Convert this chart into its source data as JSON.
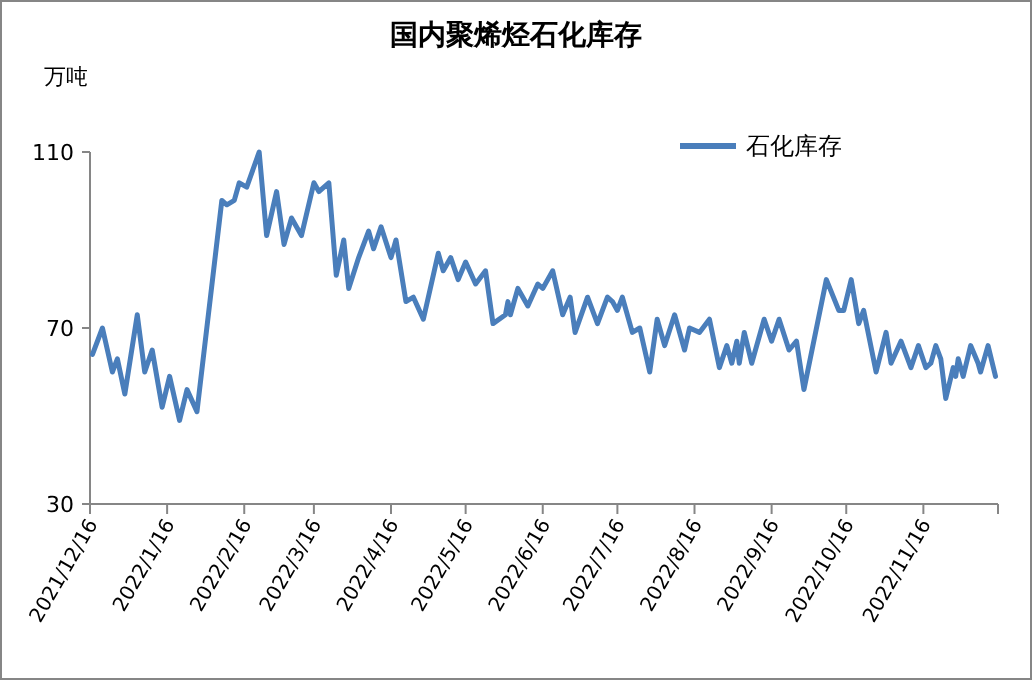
{
  "chart_data": {
    "type": "line",
    "title": "国内聚烯烃石化库存",
    "ylabel": "万吨",
    "xlim": [
      "2021-12-16",
      "2022-12-16"
    ],
    "xticks": [
      {
        "value": "2021-12-16",
        "label": "2021/12/16"
      },
      {
        "value": "2022-01-16",
        "label": "2022/1/16"
      },
      {
        "value": "2022-02-16",
        "label": "2022/2/16"
      },
      {
        "value": "2022-03-16",
        "label": "2022/3/16"
      },
      {
        "value": "2022-04-16",
        "label": "2022/4/16"
      },
      {
        "value": "2022-05-16",
        "label": "2022/5/16"
      },
      {
        "value": "2022-06-16",
        "label": "2022/6/16"
      },
      {
        "value": "2022-07-16",
        "label": "2022/7/16"
      },
      {
        "value": "2022-08-16",
        "label": "2022/8/16"
      },
      {
        "value": "2022-09-16",
        "label": "2022/9/16"
      },
      {
        "value": "2022-10-16",
        "label": "2022/10/16"
      },
      {
        "value": "2022-11-16",
        "label": "2022/11/16"
      },
      {
        "value": "2022-12-16",
        "label": null
      }
    ],
    "ylim": [
      30,
      110
    ],
    "yticks": [
      30,
      70,
      110
    ],
    "legend": "top right",
    "grid": false,
    "marker": "none",
    "line_style": "solid",
    "series": [
      {
        "name": "石化库存",
        "color": "#4a7ebb",
        "x": [
          "2021-12-17",
          "2021-12-21",
          "2021-12-25",
          "2021-12-27",
          "2021-12-30",
          "2022-01-04",
          "2022-01-07",
          "2022-01-10",
          "2022-01-14",
          "2022-01-17",
          "2022-01-21",
          "2022-01-24",
          "2022-01-28",
          "2022-02-07",
          "2022-02-09",
          "2022-02-12",
          "2022-02-14",
          "2022-02-17",
          "2022-02-22",
          "2022-02-25",
          "2022-03-01",
          "2022-03-04",
          "2022-03-07",
          "2022-03-11",
          "2022-03-16",
          "2022-03-18",
          "2022-03-22",
          "2022-03-25",
          "2022-03-28",
          "2022-03-30",
          "2022-04-03",
          "2022-04-07",
          "2022-04-09",
          "2022-04-12",
          "2022-04-16",
          "2022-04-18",
          "2022-04-22",
          "2022-04-25",
          "2022-04-29",
          "2022-05-05",
          "2022-05-07",
          "2022-05-10",
          "2022-05-13",
          "2022-05-16",
          "2022-05-20",
          "2022-05-24",
          "2022-05-27",
          "2022-06-01",
          "2022-06-02",
          "2022-06-03",
          "2022-06-06",
          "2022-06-10",
          "2022-06-14",
          "2022-06-16",
          "2022-06-20",
          "2022-06-24",
          "2022-06-27",
          "2022-06-29",
          "2022-07-04",
          "2022-07-08",
          "2022-07-12",
          "2022-07-14",
          "2022-07-16",
          "2022-07-18",
          "2022-07-22",
          "2022-07-25",
          "2022-07-29",
          "2022-08-01",
          "2022-08-04",
          "2022-08-08",
          "2022-08-12",
          "2022-08-14",
          "2022-08-18",
          "2022-08-22",
          "2022-08-26",
          "2022-08-29",
          "2022-08-31",
          "2022-09-02",
          "2022-09-03",
          "2022-09-05",
          "2022-09-08",
          "2022-09-13",
          "2022-09-16",
          "2022-09-19",
          "2022-09-23",
          "2022-09-26",
          "2022-09-29",
          "2022-10-08",
          "2022-10-13",
          "2022-10-15",
          "2022-10-18",
          "2022-10-21",
          "2022-10-23",
          "2022-10-28",
          "2022-11-01",
          "2022-11-03",
          "2022-11-07",
          "2022-11-11",
          "2022-11-14",
          "2022-11-17",
          "2022-11-19",
          "2022-11-21",
          "2022-11-23",
          "2022-11-25",
          "2022-11-28",
          "2022-11-29",
          "2022-11-30",
          "2022-12-02",
          "2022-12-05",
          "2022-12-08",
          "2022-12-09",
          "2022-12-12",
          "2022-12-15"
        ],
        "values": [
          64,
          70,
          60,
          63,
          55,
          73,
          60,
          65,
          52,
          59,
          49,
          56,
          51,
          99,
          98,
          99,
          103,
          102,
          110,
          91,
          101,
          89,
          95,
          91,
          103,
          101,
          103,
          82,
          90,
          79,
          86,
          92,
          88,
          93,
          86,
          90,
          76,
          77,
          72,
          87,
          83,
          86,
          81,
          85,
          80,
          83,
          71,
          73,
          76,
          73,
          79,
          75,
          80,
          79,
          83,
          73,
          77,
          69,
          77,
          71,
          77,
          76,
          74,
          77,
          69,
          70,
          60,
          72,
          66,
          73,
          65,
          70,
          69,
          72,
          61,
          66,
          62,
          67,
          62,
          69,
          62,
          72,
          67,
          72,
          65,
          67,
          56,
          81,
          74,
          74,
          81,
          71,
          74,
          60,
          69,
          62,
          67,
          61,
          66,
          61,
          62,
          66,
          63,
          54,
          61,
          59,
          63,
          59,
          66,
          62,
          60,
          66,
          59
        ]
      }
    ]
  }
}
